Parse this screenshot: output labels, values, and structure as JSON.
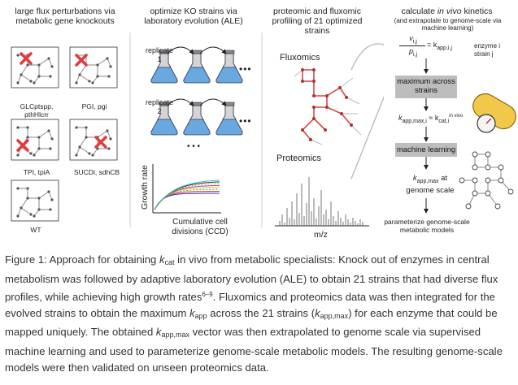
{
  "panels": {
    "p1_title": "large flux perturbations via metabolic gene knockouts",
    "p2_title": "optimize KO strains via laboratory evolution (ALE)",
    "p3_title": "proteomic and fluxomic profiling of 21 optimized strains",
    "p4_title_a": "calculate ",
    "p4_title_b": "in vivo",
    "p4_title_c": " kinetics",
    "p4_subtitle": "(and extrapolate to genome-scale via machine learning)"
  },
  "knockouts": [
    {
      "label": "GLCptspp, pthHlcrr"
    },
    {
      "label": "PGI, pgi"
    },
    {
      "label": "TPI, tpiA"
    },
    {
      "label": "SUCDi, sdhCB"
    },
    {
      "label": "WT"
    }
  ],
  "ale": {
    "replicate1": "replicate 1",
    "replicate2": "replicate 2",
    "ellipsis": "• • •",
    "dots": "•••",
    "ylabel": "Growth rate",
    "xlabel": "Cumulative cell divisions  (CCD)",
    "line_colors": [
      "#2b2bd6",
      "#d62b2b",
      "#2bb52b",
      "#e2c82b",
      "#a040c0",
      "#d68a2b",
      "#303030",
      "#2bc0c0"
    ]
  },
  "omics": {
    "fluxomics": "Fluxomics",
    "proteomics": "Proteomics",
    "mz": "m/z"
  },
  "kinetics": {
    "v": "v",
    "v_sub": "i,j",
    "p": "p",
    "p_sub": "i,j",
    "eq_rhs": "= k",
    "eq_rhs_sub": "app,i,j",
    "enzyme": "enzyme i",
    "strain": "strain j",
    "box1": "maximum across strains",
    "kmax": "k",
    "kmax_sub": "app,max,i",
    "approx": "≈ k",
    "kcat_sub": "cat,i",
    "kcat_sup": "in vivo",
    "box2": "machine learning",
    "genome_a": "k",
    "genome_sub": "app,max",
    "genome_b": " at genome scale",
    "final": "parameterize genome-scale metabolic models"
  },
  "caption": {
    "s1": "Figure 1: Approach for obtaining ",
    "kcat_k": "k",
    "kcat_sub": "cat",
    "s2": " in vivo from metabolic specialists: Knock out of enzymes in central metabolism was followed by adaptive laboratory evolution (ALE) to obtain 21 strains that had diverse flux profiles, while achieving high growth rates",
    "refs": "6–9",
    "s3": ". Fluxomics and proteomics data was then integrated for the evolved strains to obtain the maximum ",
    "kapp_k": "k",
    "kapp_sub": "app",
    "s4": " across the 21 strains (",
    "kappmax_k": "k",
    "kappmax_sub": "app,max",
    "s5": ") for each enzyme that could be mapped uniquely. The obtained ",
    "kappmax2_k": "k",
    "kappmax2_sub": "app,max",
    "s6": " vector was then extrapolated to genome scale via supervised machine learning and used to parameterize genome-scale metabolic models. The resulting genome-scale models were then validated on unseen proteomics data."
  }
}
